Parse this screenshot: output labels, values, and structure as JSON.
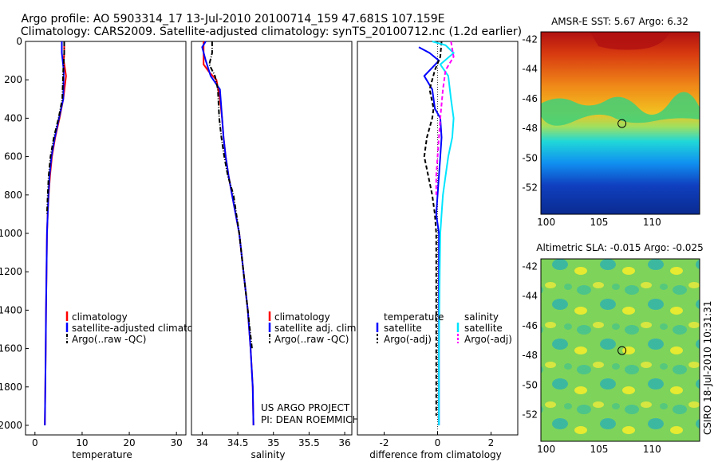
{
  "header": {
    "title_line1": "Argo profile: AO 5903314_17 13-Jul-2010 20100714_159 47.681S 107.159E",
    "title_line2": "Climatology: CARS2009. Satellite-adjusted climatology: synTS_20100712.nc (1.2d earlier)"
  },
  "colors": {
    "climatology": "#ff0000",
    "satellite": "#0000ff",
    "argo": "#000000",
    "sat_salinity": "#00e5ff",
    "argo_adj_salinity": "#ff00ff"
  },
  "chart_data": [
    {
      "id": "temperature",
      "type": "line",
      "xlabel": "temperature",
      "xlim": [
        -2,
        32
      ],
      "ylim": [
        2050,
        0
      ],
      "xticks": [
        "0",
        "10",
        "20",
        "30"
      ],
      "yticks": [
        "0",
        "200",
        "400",
        "600",
        "800",
        "1000",
        "1200",
        "1400",
        "1600",
        "1800",
        "2000"
      ],
      "legend": [
        "climatology",
        "satellite-adjusted climatolog",
        "Argo(..raw -QC)"
      ],
      "series": [
        {
          "name": "climatology",
          "color": "#ff0000",
          "style": "solid",
          "x": [
            6.2,
            6.2,
            6.1,
            6.6,
            6.0,
            5.2,
            4.3,
            3.6,
            3.2,
            2.9,
            2.7,
            2.55,
            2.45,
            2.35,
            2.28,
            2.2,
            2.15,
            2.1
          ],
          "y": [
            0,
            60,
            100,
            180,
            300,
            400,
            500,
            600,
            700,
            800,
            900,
            1000,
            1200,
            1400,
            1600,
            1800,
            1900,
            2000
          ]
        },
        {
          "name": "satellite-adjusted climatolog",
          "color": "#0000ff",
          "style": "solid",
          "x": [
            5.7,
            5.7,
            6.1,
            6.0,
            5.1,
            4.2,
            3.5,
            3.1,
            2.85,
            2.7,
            2.55,
            2.45,
            2.35,
            2.28,
            2.2,
            2.15,
            2.1
          ],
          "y": [
            0,
            60,
            150,
            300,
            400,
            500,
            600,
            700,
            800,
            900,
            1000,
            1200,
            1400,
            1600,
            1800,
            1900,
            2000
          ]
        },
        {
          "name": "Argo(..raw -QC)",
          "color": "#000000",
          "style": "dashdot",
          "x": [
            6.2,
            6.2,
            6.0,
            5.8,
            5.0,
            4.0,
            3.3,
            2.9,
            2.7,
            2.55
          ],
          "y": [
            0,
            60,
            150,
            300,
            400,
            500,
            600,
            700,
            800,
            900
          ]
        }
      ]
    },
    {
      "id": "salinity",
      "type": "line",
      "xlabel": "salinity",
      "xlim": [
        33.85,
        36.1
      ],
      "ylim": [
        2050,
        0
      ],
      "xticks": [
        "34",
        "34.5",
        "35",
        "35.5",
        "36"
      ],
      "yticks": [],
      "legend": [
        "climatology",
        "satellite adj. clim.",
        "Argo(..raw -QC)"
      ],
      "annotations": [
        "US ARGO PROJECT",
        "PI: DEAN ROEMMICH"
      ],
      "series": [
        {
          "name": "climatology",
          "color": "#ff0000",
          "style": "solid",
          "x": [
            34.02,
            34.02,
            34.1,
            34.2,
            34.25,
            34.28,
            34.3,
            34.33,
            34.37,
            34.42,
            34.47,
            34.52,
            34.58,
            34.64,
            34.68,
            34.71,
            34.72
          ],
          "y": [
            0,
            120,
            160,
            200,
            300,
            400,
            500,
            600,
            700,
            800,
            900,
            1000,
            1200,
            1400,
            1600,
            1800,
            2000
          ]
        },
        {
          "name": "satellite adj. clim.",
          "color": "#0000ff",
          "style": "solid",
          "x": [
            34.05,
            34.0,
            34.05,
            34.12,
            34.25,
            34.28,
            34.3,
            34.33,
            34.37,
            34.42,
            34.47,
            34.52,
            34.58,
            34.64,
            34.68,
            34.71,
            34.72
          ],
          "y": [
            0,
            30,
            100,
            180,
            250,
            400,
            500,
            600,
            700,
            800,
            900,
            1000,
            1200,
            1400,
            1600,
            1800,
            2000
          ]
        },
        {
          "name": "Argo(..raw -QC)",
          "color": "#000000",
          "style": "dashdot",
          "x": [
            34.14,
            34.14,
            34.1,
            34.18,
            34.22,
            34.24,
            34.27,
            34.31,
            34.36,
            34.44,
            34.52,
            34.58,
            34.64,
            34.7
          ],
          "y": [
            0,
            60,
            120,
            180,
            250,
            400,
            500,
            600,
            700,
            800,
            1000,
            1200,
            1400,
            1600
          ]
        }
      ]
    },
    {
      "id": "difference",
      "type": "line",
      "xlabel": "difference from climatology",
      "xlim": [
        -3,
        3
      ],
      "ylim": [
        2050,
        0
      ],
      "xticks": [
        "-2",
        "0",
        "2"
      ],
      "yticks": [],
      "legend_headers": [
        "temperature",
        "salinity"
      ],
      "legend": [
        "satellite",
        "Argo(-adj)",
        "satellite",
        "Argo(-adj)"
      ],
      "series": [
        {
          "name": "satellite",
          "group": "temperature",
          "color": "#0000ff",
          "style": "solid",
          "x": [
            -0.7,
            -0.3,
            0.05,
            -0.5,
            -0.2,
            -0.1,
            0.1,
            0.15,
            0.1,
            0.05,
            0.0,
            -0.05,
            0.05,
            0.05,
            0.05,
            0.05,
            0.05
          ],
          "y": [
            30,
            60,
            100,
            180,
            250,
            350,
            400,
            500,
            600,
            700,
            800,
            900,
            1000,
            1200,
            1400,
            1700,
            2000
          ]
        },
        {
          "name": "Argo(-adj)",
          "group": "temperature",
          "color": "#000000",
          "style": "dashed",
          "x": [
            0.15,
            0.1,
            -0.1,
            -0.3,
            -0.15,
            -0.2,
            -0.4,
            -0.5,
            -0.35,
            -0.2,
            -0.1,
            -0.05,
            -0.05,
            -0.05,
            -0.05,
            -0.05
          ],
          "y": [
            0,
            80,
            150,
            250,
            350,
            400,
            500,
            600,
            700,
            800,
            900,
            1000,
            1200,
            1500,
            1800,
            1950
          ]
        },
        {
          "name": "satellite",
          "group": "salinity",
          "color": "#00e5ff",
          "style": "solid",
          "x": [
            -0.2,
            0.3,
            0.6,
            0.1,
            0.4,
            0.5,
            0.6,
            0.55,
            0.4,
            0.3,
            0.2,
            0.15,
            0.1,
            0.08,
            0.05,
            0.05
          ],
          "y": [
            0,
            20,
            60,
            120,
            180,
            300,
            400,
            500,
            600,
            700,
            800,
            900,
            1000,
            1200,
            1600,
            2000
          ]
        },
        {
          "name": "Argo(-adj)",
          "group": "salinity",
          "color": "#ff00ff",
          "style": "dashed",
          "x": [
            0.5,
            0.55,
            0.6,
            0.3,
            0.2,
            0.1,
            0.05,
            0.0,
            -0.05,
            -0.05
          ],
          "y": [
            0,
            40,
            80,
            150,
            250,
            400,
            500,
            600,
            700,
            800
          ]
        }
      ]
    },
    {
      "id": "sst_map",
      "type": "heatmap",
      "title": "AMSR-E SST: 5.67 Argo: 6.32",
      "xlim": [
        99.5,
        114.5
      ],
      "ylim": [
        -53.8,
        -41.5
      ],
      "xticks": [
        "100",
        "105",
        "110"
      ],
      "yticks": [
        "-42",
        "-44",
        "-46",
        "-48",
        "-50",
        "-52"
      ],
      "marker": {
        "lon": 107.159,
        "lat": -47.681
      }
    },
    {
      "id": "sla_map",
      "type": "heatmap",
      "title": "Altimetric SLA: -0.015 Argo: -0.025",
      "xlim": [
        99.5,
        114.5
      ],
      "ylim": [
        -53.8,
        -41.5
      ],
      "xticks": [
        "100",
        "105",
        "110"
      ],
      "yticks": [
        "-42",
        "-44",
        "-46",
        "-48",
        "-50",
        "-52"
      ],
      "marker": {
        "lon": 107.159,
        "lat": -47.681
      }
    }
  ],
  "footer": {
    "credit": "CSIRO 18-Jul-2010 10:31:31"
  }
}
